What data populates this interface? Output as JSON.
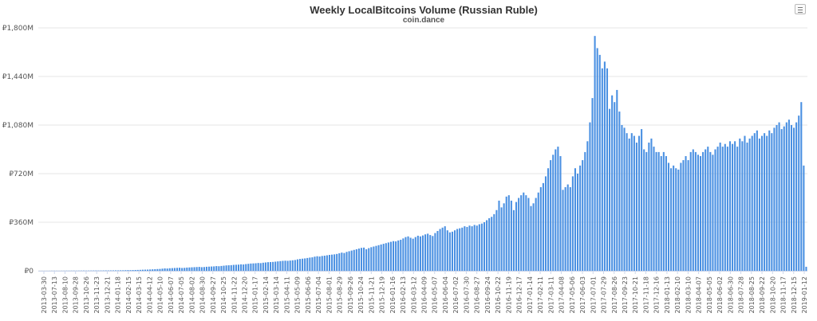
{
  "chart_data": {
    "type": "bar",
    "title": "Weekly LocalBitcoins Volume (Russian Ruble)",
    "subtitle": "coin.dance",
    "xlabel": "",
    "ylabel": "",
    "ylim": [
      0,
      1800
    ],
    "y_unit": "million RUB",
    "y_ticks": [
      {
        "value": 0,
        "label": "₽0"
      },
      {
        "value": 360,
        "label": "₽360M"
      },
      {
        "value": 720,
        "label": "₽720M"
      },
      {
        "value": 1080,
        "label": "₽1,080M"
      },
      {
        "value": 1440,
        "label": "₽1,440M"
      },
      {
        "value": 1800,
        "label": "₽1,800M"
      }
    ],
    "x_tick_labels": [
      "2013-03-30",
      "2013-07-13",
      "2013-08-10",
      "2013-09-28",
      "2013-10-26",
      "2013-11-23",
      "2013-12-21",
      "2014-01-18",
      "2014-02-15",
      "2014-03-15",
      "2014-04-12",
      "2014-05-10",
      "2014-06-07",
      "2014-07-05",
      "2014-08-02",
      "2014-08-30",
      "2014-09-27",
      "2014-10-25",
      "2014-11-22",
      "2014-12-20",
      "2015-01-17",
      "2015-02-14",
      "2015-03-14",
      "2015-04-11",
      "2015-05-09",
      "2015-06-06",
      "2015-07-04",
      "2015-08-01",
      "2015-08-29",
      "2015-09-26",
      "2015-10-24",
      "2015-11-21",
      "2015-12-19",
      "2016-01-16",
      "2016-02-13",
      "2016-03-12",
      "2016-04-09",
      "2016-05-07",
      "2016-06-04",
      "2016-07-02",
      "2016-07-30",
      "2016-08-27",
      "2016-09-24",
      "2016-10-22",
      "2016-11-19",
      "2016-12-17",
      "2017-01-14",
      "2017-02-11",
      "2017-03-11",
      "2017-04-08",
      "2017-05-06",
      "2017-06-03",
      "2017-07-01",
      "2017-07-29",
      "2017-08-26",
      "2017-09-23",
      "2017-10-21",
      "2017-11-18",
      "2017-12-16",
      "2018-01-13",
      "2018-02-10",
      "2018-03-10",
      "2018-04-07",
      "2018-05-05",
      "2018-06-02",
      "2018-06-30",
      "2018-07-28",
      "2018-08-25",
      "2018-09-22",
      "2018-10-20",
      "2018-11-17",
      "2018-12-15",
      "2019-01-12"
    ],
    "series": [
      {
        "color": "#4a90e2",
        "values": [
          0.3,
          0.4,
          0.5,
          0.4,
          0.6,
          0.8,
          0.9,
          0.7,
          0.6,
          0.8,
          1,
          1.2,
          1.1,
          1.3,
          1.5,
          1.2,
          1.4,
          1.6,
          1.8,
          1.5,
          1.7,
          1.9,
          2.1,
          2.3,
          2,
          2.2,
          2.5,
          2.8,
          2.6,
          3,
          3.2,
          3.5,
          3.3,
          3.8,
          4,
          4.5,
          5,
          4.8,
          5.5,
          6,
          6.5,
          7,
          8,
          8.5,
          9,
          10,
          11,
          12,
          13,
          14,
          16,
          18,
          17,
          19,
          20,
          21,
          22,
          23,
          21,
          22,
          24,
          25,
          26,
          27,
          28,
          29,
          27,
          28,
          30,
          31,
          32,
          33,
          35,
          34,
          36,
          38,
          40,
          41,
          42,
          44,
          45,
          46,
          48,
          47,
          50,
          52,
          54,
          55,
          56,
          58,
          57,
          60,
          62,
          64,
          65,
          66,
          68,
          70,
          72,
          74,
          75,
          74,
          76,
          78,
          80,
          85,
          88,
          90,
          92,
          95,
          98,
          100,
          105,
          108,
          106,
          110,
          112,
          115,
          118,
          120,
          122,
          125,
          130,
          135,
          132,
          140,
          145,
          150,
          155,
          160,
          165,
          170,
          172,
          160,
          168,
          175,
          180,
          185,
          190,
          195,
          200,
          205,
          210,
          215,
          220,
          218,
          225,
          230,
          240,
          250,
          255,
          245,
          238,
          250,
          260,
          255,
          262,
          270,
          275,
          265,
          258,
          280,
          295,
          310,
          320,
          330,
          300,
          285,
          290,
          300,
          310,
          315,
          320,
          330,
          325,
          335,
          330,
          340,
          335,
          345,
          350,
          360,
          375,
          390,
          400,
          420,
          450,
          520,
          470,
          500,
          550,
          560,
          520,
          450,
          510,
          540,
          560,
          580,
          560,
          540,
          480,
          500,
          540,
          580,
          620,
          650,
          700,
          760,
          820,
          860,
          900,
          920,
          850,
          600,
          620,
          640,
          620,
          700,
          760,
          720,
          780,
          820,
          880,
          960,
          1100,
          1280,
          1740,
          1650,
          1600,
          1500,
          1550,
          1500,
          1200,
          1300,
          1250,
          1340,
          1180,
          1080,
          1060,
          1020,
          980,
          1020,
          1000,
          950,
          1000,
          1050,
          900,
          880,
          950,
          980,
          920,
          880,
          880,
          850,
          880,
          850,
          800,
          760,
          780,
          760,
          750,
          800,
          820,
          850,
          820,
          880,
          900,
          880,
          860,
          850,
          880,
          900,
          920,
          880,
          860,
          900,
          920,
          950,
          920,
          940,
          920,
          960,
          940,
          960,
          920,
          980,
          960,
          1000,
          950,
          980,
          1000,
          1020,
          1040,
          980,
          1000,
          1020,
          1000,
          1040,
          1020,
          1060,
          1080,
          1100,
          1050,
          1070,
          1100,
          1120,
          1080,
          1060,
          1100,
          1150,
          1250,
          780,
          30
        ]
      }
    ]
  }
}
